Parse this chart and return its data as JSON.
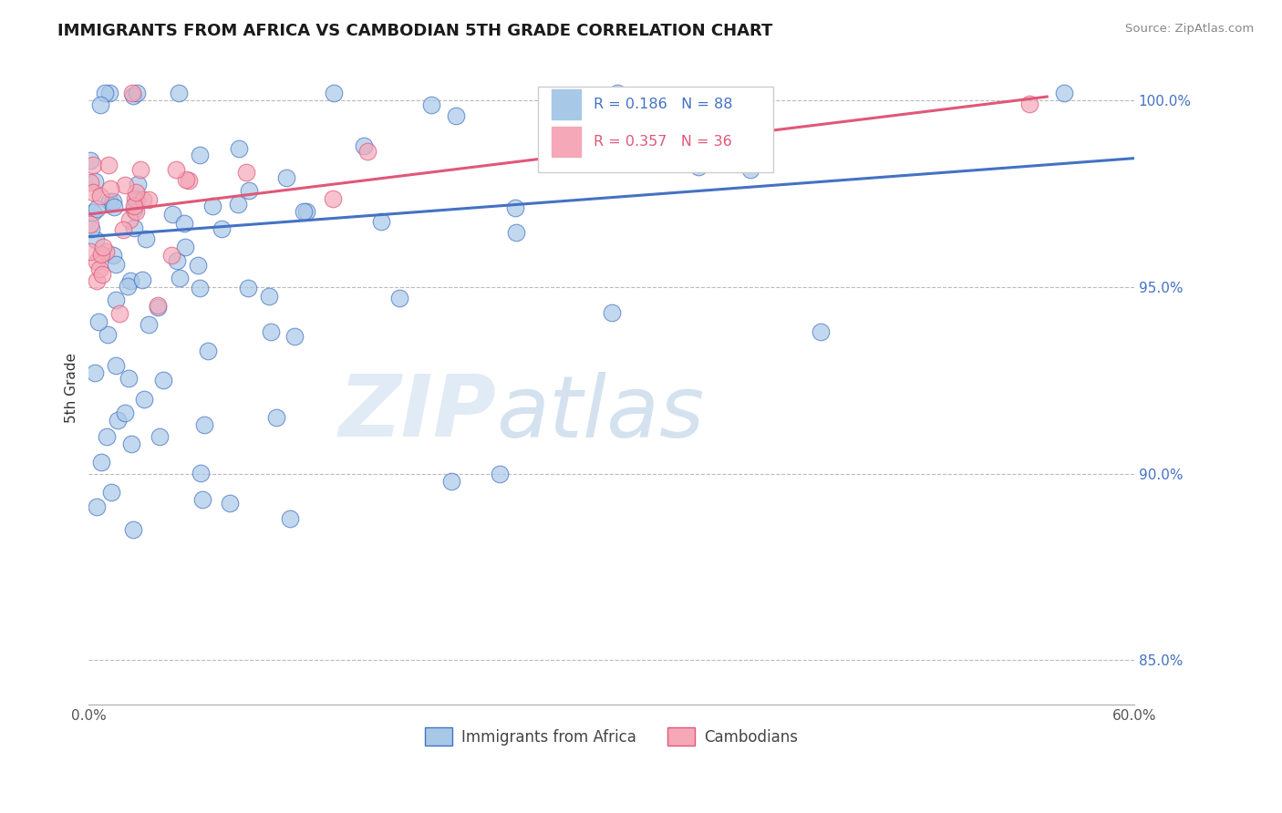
{
  "title": "IMMIGRANTS FROM AFRICA VS CAMBODIAN 5TH GRADE CORRELATION CHART",
  "source": "Source: ZipAtlas.com",
  "ylabel": "5th Grade",
  "xlim": [
    0.0,
    0.6
  ],
  "ylim": [
    0.838,
    1.008
  ],
  "yticks_right": [
    0.85,
    0.9,
    0.95,
    1.0
  ],
  "yticklabels_right": [
    "85.0%",
    "90.0%",
    "95.0%",
    "100.0%"
  ],
  "blue_R": 0.186,
  "blue_N": 88,
  "pink_R": 0.357,
  "pink_N": 36,
  "blue_color": "#a8c8e8",
  "pink_color": "#f4a8b8",
  "blue_line_color": "#4472c4",
  "pink_line_color": "#e05878",
  "legend_label_blue": "Immigrants from Africa",
  "legend_label_pink": "Cambodians",
  "blue_line_x": [
    0.0,
    0.6
  ],
  "blue_line_y": [
    0.9635,
    0.9845
  ],
  "pink_line_x": [
    0.0,
    0.55
  ],
  "pink_line_y": [
    0.9695,
    1.001
  ],
  "watermark_zip": "ZIP",
  "watermark_atlas": "atlas",
  "dpi": 100
}
